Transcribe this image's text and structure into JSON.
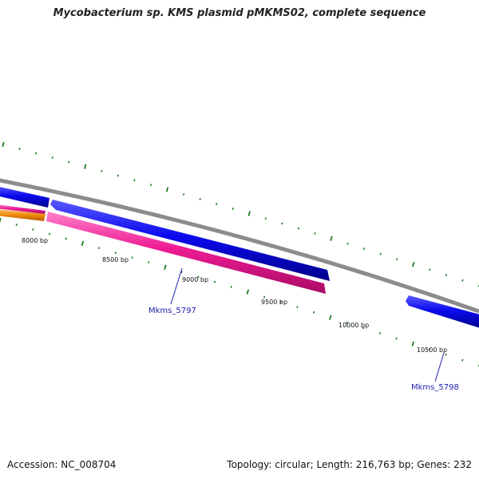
{
  "title": "Mycobacterium sp. KMS plasmid pMKMS02, complete sequence",
  "accession": "Accession: NC_008704",
  "summary": "Topology: circular; Length: 216,763 bp; Genes: 232",
  "colors": {
    "backbone": "#8c8c8c",
    "forward_gene": "#0a0aee",
    "reverse_gene": "#ee1c94",
    "other_gene": "#f08a0a",
    "tick": "#1f7a1f",
    "gene_label": "#1d1db3"
  },
  "ticks": [
    {
      "label": "8000 bp"
    },
    {
      "label": "8500 bp"
    },
    {
      "label": "9000 bp"
    },
    {
      "label": "9500 bp"
    },
    {
      "label": "10000 bp"
    },
    {
      "label": "10500 bp"
    }
  ],
  "gene_labels": [
    {
      "label": "Mkms_5797"
    },
    {
      "label": "Mkms_5798"
    }
  ]
}
